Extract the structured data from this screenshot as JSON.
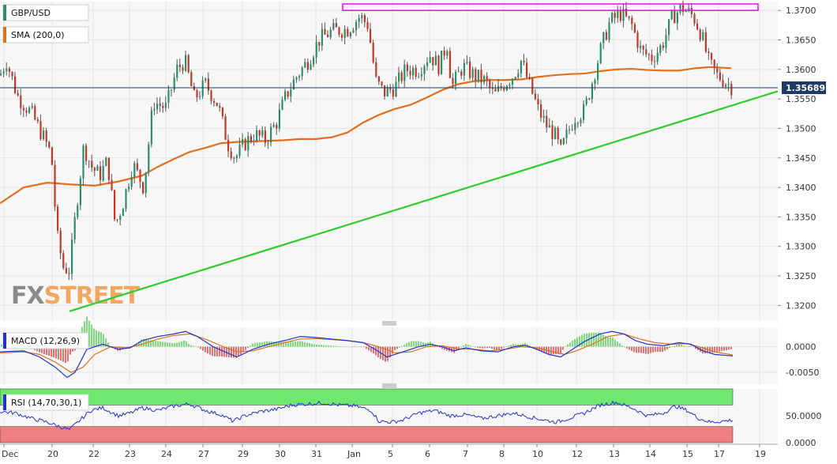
{
  "chart_data": [
    {
      "type": "candlestick",
      "panel": "price",
      "symbol": "GBP/USD",
      "indicator_label": "SMA (200,0)",
      "watermark": "FXSTREET",
      "watermark_parts": [
        "FX",
        "STREET"
      ],
      "current_price": 1.35689,
      "current_price_label": "1.35689",
      "ylim": [
        1.3175,
        1.3715
      ],
      "y_ticks": [
        1.32,
        1.325,
        1.33,
        1.335,
        1.34,
        1.345,
        1.35,
        1.355,
        1.36,
        1.365,
        1.37
      ],
      "y_tick_labels": [
        "1.3200",
        "1.3250",
        "1.3300",
        "1.3350",
        "1.3400",
        "1.3450",
        "1.3500",
        "1.3550",
        "1.3600",
        "1.3650",
        "1.3700"
      ],
      "x_tick_labels": [
        "Dec",
        "20",
        "22",
        "23",
        "24",
        "27",
        "29",
        "30",
        "31",
        "Jan",
        "5",
        "6",
        "7",
        "8",
        "10",
        "12",
        "13",
        "14",
        "15",
        "17",
        "19"
      ],
      "sma_200": [
        [
          0,
          1.3373
        ],
        [
          30,
          1.34
        ],
        [
          60,
          1.3408
        ],
        [
          90,
          1.3405
        ],
        [
          120,
          1.3403
        ],
        [
          150,
          1.341
        ],
        [
          180,
          1.342
        ],
        [
          200,
          1.3435
        ],
        [
          220,
          1.3448
        ],
        [
          240,
          1.346
        ],
        [
          260,
          1.3467
        ],
        [
          280,
          1.3475
        ],
        [
          300,
          1.3477
        ],
        [
          320,
          1.3478
        ],
        [
          340,
          1.3479
        ],
        [
          360,
          1.348
        ],
        [
          380,
          1.3482
        ],
        [
          400,
          1.3482
        ],
        [
          420,
          1.3485
        ],
        [
          440,
          1.3493
        ],
        [
          460,
          1.351
        ],
        [
          480,
          1.3523
        ],
        [
          500,
          1.3533
        ],
        [
          520,
          1.354
        ],
        [
          540,
          1.3552
        ],
        [
          560,
          1.3565
        ],
        [
          580,
          1.3575
        ],
        [
          600,
          1.358
        ],
        [
          620,
          1.3582
        ],
        [
          640,
          1.3582
        ],
        [
          660,
          1.3583
        ],
        [
          680,
          1.3587
        ],
        [
          700,
          1.359
        ],
        [
          720,
          1.3592
        ],
        [
          740,
          1.3593
        ],
        [
          760,
          1.3597
        ],
        [
          780,
          1.36
        ],
        [
          800,
          1.3601
        ],
        [
          820,
          1.3599
        ],
        [
          840,
          1.3598
        ],
        [
          860,
          1.3598
        ],
        [
          880,
          1.3602
        ],
        [
          900,
          1.3604
        ],
        [
          926,
          1.3602
        ]
      ],
      "price_path": [
        [
          0,
          1.359
        ],
        [
          8,
          1.3615
        ],
        [
          22,
          1.3555
        ],
        [
          40,
          1.3525
        ],
        [
          55,
          1.3485
        ],
        [
          65,
          1.3455
        ],
        [
          72,
          1.332
        ],
        [
          80,
          1.3265
        ],
        [
          88,
          1.326
        ],
        [
          96,
          1.336
        ],
        [
          106,
          1.347
        ],
        [
          116,
          1.3435
        ],
        [
          126,
          1.342
        ],
        [
          136,
          1.3445
        ],
        [
          146,
          1.3335
        ],
        [
          156,
          1.3375
        ],
        [
          168,
          1.344
        ],
        [
          182,
          1.34
        ],
        [
          194,
          1.3545
        ],
        [
          210,
          1.3535
        ],
        [
          224,
          1.36
        ],
        [
          234,
          1.3615
        ],
        [
          246,
          1.355
        ],
        [
          260,
          1.3575
        ],
        [
          276,
          1.354
        ],
        [
          288,
          1.3475
        ],
        [
          298,
          1.345
        ],
        [
          310,
          1.3475
        ],
        [
          322,
          1.349
        ],
        [
          336,
          1.348
        ],
        [
          350,
          1.351
        ],
        [
          362,
          1.3555
        ],
        [
          374,
          1.3585
        ],
        [
          390,
          1.3615
        ],
        [
          404,
          1.365
        ],
        [
          420,
          1.3665
        ],
        [
          440,
          1.3668
        ],
        [
          456,
          1.369
        ],
        [
          466,
          1.3675
        ],
        [
          476,
          1.358
        ],
        [
          486,
          1.356
        ],
        [
          500,
          1.357
        ],
        [
          514,
          1.36
        ],
        [
          530,
          1.36
        ],
        [
          544,
          1.3625
        ],
        [
          556,
          1.3605
        ],
        [
          566,
          1.3645
        ],
        [
          572,
          1.357
        ],
        [
          586,
          1.3605
        ],
        [
          600,
          1.359
        ],
        [
          614,
          1.358
        ],
        [
          626,
          1.3555
        ],
        [
          638,
          1.3575
        ],
        [
          650,
          1.359
        ],
        [
          660,
          1.3615
        ],
        [
          670,
          1.3575
        ],
        [
          682,
          1.353
        ],
        [
          692,
          1.3505
        ],
        [
          702,
          1.349
        ],
        [
          710,
          1.346
        ],
        [
          718,
          1.349
        ],
        [
          728,
          1.352
        ],
        [
          740,
          1.353
        ],
        [
          752,
          1.359
        ],
        [
          762,
          1.364
        ],
        [
          772,
          1.368
        ],
        [
          786,
          1.3695
        ],
        [
          800,
          1.3675
        ],
        [
          812,
          1.363
        ],
        [
          826,
          1.362
        ],
        [
          838,
          1.364
        ],
        [
          852,
          1.369
        ],
        [
          864,
          1.3705
        ],
        [
          878,
          1.369
        ],
        [
          888,
          1.366
        ],
        [
          898,
          1.361
        ],
        [
          908,
          1.359
        ],
        [
          918,
          1.358
        ],
        [
          928,
          1.3569
        ]
      ],
      "trendline_support": {
        "x": [
          88,
          985
        ],
        "y": [
          1.319,
          1.3563
        ]
      },
      "resistance_box": {
        "x": [
          434,
          960
        ],
        "y": [
          1.37,
          1.3711
        ]
      }
    },
    {
      "type": "macd",
      "panel": "macd",
      "label": "MACD (12,26,9)",
      "ylim": [
        -0.007,
        0.0035
      ],
      "y_ticks": [
        0.0,
        -0.005
      ],
      "y_tick_labels": [
        "0.0000",
        "-0.0050"
      ],
      "macd_line": [
        [
          0,
          -0.001
        ],
        [
          30,
          -0.0008
        ],
        [
          50,
          -0.002
        ],
        [
          70,
          -0.004
        ],
        [
          85,
          -0.006
        ],
        [
          95,
          -0.005
        ],
        [
          110,
          -0.0005
        ],
        [
          130,
          0.0005
        ],
        [
          150,
          -0.0005
        ],
        [
          165,
          -0.0002
        ],
        [
          180,
          0.0012
        ],
        [
          200,
          0.002
        ],
        [
          220,
          0.0025
        ],
        [
          235,
          0.003
        ],
        [
          250,
          0.002
        ],
        [
          270,
          0.0
        ],
        [
          285,
          -0.001
        ],
        [
          300,
          -0.002
        ],
        [
          320,
          -0.0005
        ],
        [
          340,
          0.0005
        ],
        [
          360,
          0.0012
        ],
        [
          380,
          0.002
        ],
        [
          400,
          0.0018
        ],
        [
          420,
          0.0015
        ],
        [
          440,
          0.0012
        ],
        [
          460,
          0.0008
        ],
        [
          475,
          -0.0005
        ],
        [
          490,
          -0.002
        ],
        [
          510,
          -0.001
        ],
        [
          530,
          0.0
        ],
        [
          545,
          0.0005
        ],
        [
          560,
          0.0
        ],
        [
          575,
          -0.0008
        ],
        [
          590,
          -0.0002
        ],
        [
          610,
          -0.0008
        ],
        [
          630,
          -0.001
        ],
        [
          650,
          0.0
        ],
        [
          665,
          0.0003
        ],
        [
          680,
          -0.0005
        ],
        [
          695,
          -0.0015
        ],
        [
          710,
          -0.002
        ],
        [
          725,
          -0.0005
        ],
        [
          740,
          0.001
        ],
        [
          760,
          0.0025
        ],
        [
          775,
          0.003
        ],
        [
          790,
          0.0025
        ],
        [
          805,
          0.0012
        ],
        [
          820,
          0.0005
        ],
        [
          840,
          0.0002
        ],
        [
          860,
          0.0008
        ],
        [
          875,
          0.0005
        ],
        [
          890,
          -0.0008
        ],
        [
          905,
          -0.0015
        ],
        [
          928,
          -0.0018
        ]
      ],
      "signal_line": [
        [
          0,
          -0.0012
        ],
        [
          30,
          -0.001
        ],
        [
          50,
          -0.0015
        ],
        [
          70,
          -0.003
        ],
        [
          90,
          -0.005
        ],
        [
          105,
          -0.004
        ],
        [
          120,
          -0.0015
        ],
        [
          140,
          0.0
        ],
        [
          160,
          -0.0002
        ],
        [
          180,
          0.0005
        ],
        [
          200,
          0.0015
        ],
        [
          220,
          0.0022
        ],
        [
          240,
          0.0025
        ],
        [
          260,
          0.0015
        ],
        [
          280,
          0.0002
        ],
        [
          300,
          -0.001
        ],
        [
          320,
          -0.0008
        ],
        [
          340,
          0.0
        ],
        [
          360,
          0.0008
        ],
        [
          380,
          0.0015
        ],
        [
          400,
          0.0016
        ],
        [
          420,
          0.0014
        ],
        [
          440,
          0.0012
        ],
        [
          460,
          0.0008
        ],
        [
          480,
          0.0
        ],
        [
          500,
          -0.0012
        ],
        [
          520,
          -0.001
        ],
        [
          540,
          0.0
        ],
        [
          560,
          0.0002
        ],
        [
          580,
          -0.0004
        ],
        [
          600,
          -0.0005
        ],
        [
          620,
          -0.0008
        ],
        [
          640,
          -0.0005
        ],
        [
          660,
          0.0
        ],
        [
          680,
          -0.0002
        ],
        [
          700,
          -0.001
        ],
        [
          715,
          -0.0015
        ],
        [
          730,
          -0.0008
        ],
        [
          750,
          0.0005
        ],
        [
          770,
          0.002
        ],
        [
          790,
          0.0025
        ],
        [
          810,
          0.0015
        ],
        [
          830,
          0.0008
        ],
        [
          850,
          0.0005
        ],
        [
          870,
          0.0006
        ],
        [
          890,
          -0.0002
        ],
        [
          905,
          -0.001
        ],
        [
          928,
          -0.0016
        ]
      ]
    },
    {
      "type": "rsi",
      "panel": "rsi",
      "label": "RSI (14,70,30,1)",
      "ylim": [
        0,
        100
      ],
      "overbought": 70,
      "oversold": 30,
      "y_ticks": [
        50,
        0
      ],
      "y_tick_labels": [
        "50.0000",
        "0.0000"
      ],
      "rsi_line": [
        [
          0,
          58
        ],
        [
          20,
          55
        ],
        [
          40,
          45
        ],
        [
          60,
          38
        ],
        [
          75,
          30
        ],
        [
          88,
          24
        ],
        [
          100,
          40
        ],
        [
          115,
          60
        ],
        [
          130,
          65
        ],
        [
          150,
          50
        ],
        [
          165,
          55
        ],
        [
          180,
          65
        ],
        [
          200,
          60
        ],
        [
          220,
          68
        ],
        [
          240,
          72
        ],
        [
          260,
          60
        ],
        [
          280,
          52
        ],
        [
          295,
          40
        ],
        [
          310,
          50
        ],
        [
          330,
          58
        ],
        [
          350,
          62
        ],
        [
          370,
          70
        ],
        [
          390,
          72
        ],
        [
          410,
          74
        ],
        [
          430,
          70
        ],
        [
          450,
          68
        ],
        [
          470,
          60
        ],
        [
          480,
          40
        ],
        [
          495,
          38
        ],
        [
          510,
          42
        ],
        [
          530,
          55
        ],
        [
          550,
          60
        ],
        [
          570,
          50
        ],
        [
          590,
          52
        ],
        [
          610,
          45
        ],
        [
          630,
          50
        ],
        [
          650,
          55
        ],
        [
          670,
          48
        ],
        [
          690,
          42
        ],
        [
          705,
          38
        ],
        [
          720,
          45
        ],
        [
          740,
          55
        ],
        [
          760,
          70
        ],
        [
          780,
          75
        ],
        [
          800,
          65
        ],
        [
          820,
          50
        ],
        [
          840,
          55
        ],
        [
          855,
          68
        ],
        [
          870,
          60
        ],
        [
          885,
          45
        ],
        [
          900,
          38
        ],
        [
          915,
          40
        ],
        [
          928,
          42
        ]
      ]
    }
  ]
}
